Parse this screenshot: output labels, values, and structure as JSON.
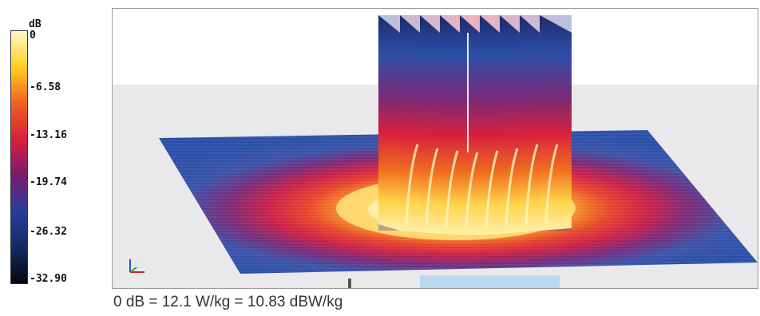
{
  "legend": {
    "unit": "dB",
    "ticks": [
      "0",
      "-6.58",
      "-13.16",
      "-19.74",
      "-26.32",
      "-32.90"
    ],
    "colors": [
      "#fff8c8",
      "#ffd020",
      "#f06020",
      "#d8203c",
      "#7a1a6a",
      "#2a3d9a",
      "#152a60",
      "#050510"
    ]
  },
  "caption": "0 dB = 12.1 W/kg = 10.83 dBW/kg",
  "plot": {
    "description_colors": {
      "outer": "#2b4fa8",
      "ring_purple": "#7a2a78",
      "ring_red": "#d8203c",
      "ring_orange": "#f07020",
      "core_yellow": "#ffd24a",
      "center": "#fff0a8"
    },
    "fin_count": 9
  }
}
